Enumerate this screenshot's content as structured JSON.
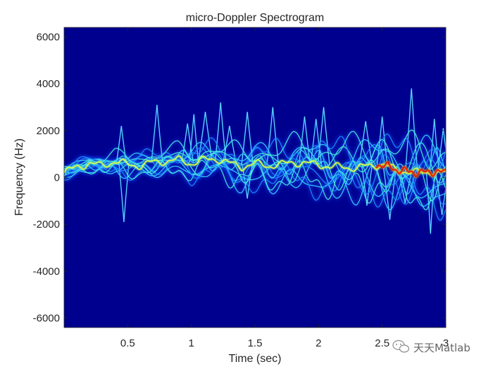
{
  "chart_data": {
    "type": "heatmap",
    "title": "micro-Doppler Spectrogram",
    "xlabel": "Time (sec)",
    "ylabel": "Frequency (Hz)",
    "xlim": [
      0,
      3
    ],
    "ylim": [
      -6400,
      6400
    ],
    "xticks": [
      0.5,
      1,
      1.5,
      2,
      2.5,
      3
    ],
    "xtick_labels": [
      "0.5",
      "1",
      "1.5",
      "2",
      "2.5",
      "3"
    ],
    "yticks": [
      6000,
      4000,
      2000,
      0,
      -2000,
      -4000,
      -6000
    ],
    "ytick_labels": [
      "6000",
      "4000",
      "2000",
      "0",
      "-2000",
      "-4000",
      "-6000"
    ],
    "colormap": "jet",
    "background_color": "#00008f",
    "dominant_band": [
      {
        "x": 0.0,
        "y": 200
      },
      {
        "x": 0.1,
        "y": 450
      },
      {
        "x": 0.2,
        "y": 600
      },
      {
        "x": 0.3,
        "y": 500
      },
      {
        "x": 0.4,
        "y": 700
      },
      {
        "x": 0.5,
        "y": 550
      },
      {
        "x": 0.6,
        "y": 500
      },
      {
        "x": 0.7,
        "y": 650
      },
      {
        "x": 0.8,
        "y": 700
      },
      {
        "x": 0.9,
        "y": 750
      },
      {
        "x": 1.0,
        "y": 600
      },
      {
        "x": 1.1,
        "y": 750
      },
      {
        "x": 1.2,
        "y": 800
      },
      {
        "x": 1.3,
        "y": 600
      },
      {
        "x": 1.4,
        "y": 450
      },
      {
        "x": 1.5,
        "y": 600
      },
      {
        "x": 1.6,
        "y": 500
      },
      {
        "x": 1.7,
        "y": 550
      },
      {
        "x": 1.8,
        "y": 650
      },
      {
        "x": 1.9,
        "y": 600
      },
      {
        "x": 2.0,
        "y": 550
      },
      {
        "x": 2.1,
        "y": 450
      },
      {
        "x": 2.2,
        "y": 450
      },
      {
        "x": 2.3,
        "y": 400
      },
      {
        "x": 2.4,
        "y": 500
      },
      {
        "x": 2.5,
        "y": 550
      },
      {
        "x": 2.6,
        "y": 350
      },
      {
        "x": 2.7,
        "y": 250
      },
      {
        "x": 2.8,
        "y": 200
      },
      {
        "x": 2.9,
        "y": 250
      },
      {
        "x": 3.0,
        "y": 200
      }
    ],
    "peaks": [
      {
        "x": 0.45,
        "y": 2200
      },
      {
        "x": 0.73,
        "y": 3100
      },
      {
        "x": 0.97,
        "y": 2300
      },
      {
        "x": 1.02,
        "y": 2700
      },
      {
        "x": 1.11,
        "y": 2800
      },
      {
        "x": 1.23,
        "y": 3200
      },
      {
        "x": 1.3,
        "y": 2200
      },
      {
        "x": 1.44,
        "y": 2800
      },
      {
        "x": 1.64,
        "y": 3000
      },
      {
        "x": 1.89,
        "y": 2600
      },
      {
        "x": 1.98,
        "y": 2500
      },
      {
        "x": 2.04,
        "y": 3000
      },
      {
        "x": 2.37,
        "y": 2400
      },
      {
        "x": 2.5,
        "y": 2600
      },
      {
        "x": 2.73,
        "y": 3800
      },
      {
        "x": 2.91,
        "y": 2500
      },
      {
        "x": 2.98,
        "y": 2100
      }
    ],
    "troughs": [
      {
        "x": 0.47,
        "y": -1900
      },
      {
        "x": 1.44,
        "y": -900
      },
      {
        "x": 2.38,
        "y": -1200
      },
      {
        "x": 2.56,
        "y": -1800
      },
      {
        "x": 2.68,
        "y": -1100
      },
      {
        "x": 2.88,
        "y": -2400
      },
      {
        "x": 2.97,
        "y": -1600
      }
    ],
    "hot_region": {
      "x": [
        2.45,
        3.0
      ],
      "y": [
        0,
        700
      ],
      "color": "red"
    }
  },
  "watermark": {
    "text": "天天Matlab"
  }
}
